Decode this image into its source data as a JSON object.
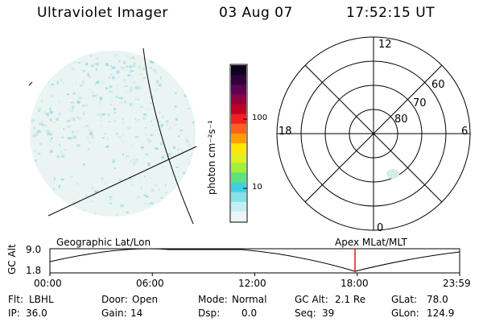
{
  "header": {
    "instrument": "Ultraviolet Imager",
    "date": "03 Aug 07",
    "time": "17:52:15 UT"
  },
  "colorbar": {
    "unit_label": "photon cm⁻²s⁻¹",
    "ticks": [
      "100",
      "10"
    ],
    "colors": [
      "#eaf6f6",
      "#c6f0f0",
      "#88e0e8",
      "#40d0e0",
      "#60e080",
      "#a0f040",
      "#e0f020",
      "#ffe800",
      "#ffa000",
      "#ff6020",
      "#f02020",
      "#c00020",
      "#900040",
      "#600050",
      "#30003a",
      "#100020"
    ]
  },
  "polar_plot": {
    "top_label": "12",
    "bottom_label": "0",
    "left_label": "18",
    "right_label": "6",
    "ring_labels": [
      "60",
      "70",
      "80"
    ]
  },
  "timeline": {
    "left_label": "Geographic Lat/Lon",
    "right_label": "Apex MLat/MLT",
    "y_axis_title": "GC Alt",
    "y_ticks": [
      "9.0",
      "1.8"
    ],
    "x_ticks": [
      "00:00",
      "06:00",
      "12:00",
      "18:00",
      "23:59"
    ],
    "current_time_fraction": 0.7446,
    "marker_color": "#cc2020"
  },
  "info": {
    "row1": [
      {
        "label": "Flt:",
        "value": "LBHL"
      },
      {
        "label": "Door:",
        "value": "Open"
      },
      {
        "label": "Mode:",
        "value": "Normal"
      },
      {
        "label": "GC Alt:",
        "value": "2.1 Re"
      },
      {
        "label": "GLat:",
        "value": "78.0"
      }
    ],
    "row2": [
      {
        "label": "IP:",
        "value": "36.0"
      },
      {
        "label": "Gain:",
        "value": "14"
      },
      {
        "label": "Dsp:",
        "value": "0.0"
      },
      {
        "label": "Seq:",
        "value": "39"
      },
      {
        "label": "GLon:",
        "value": "124.9"
      }
    ]
  }
}
